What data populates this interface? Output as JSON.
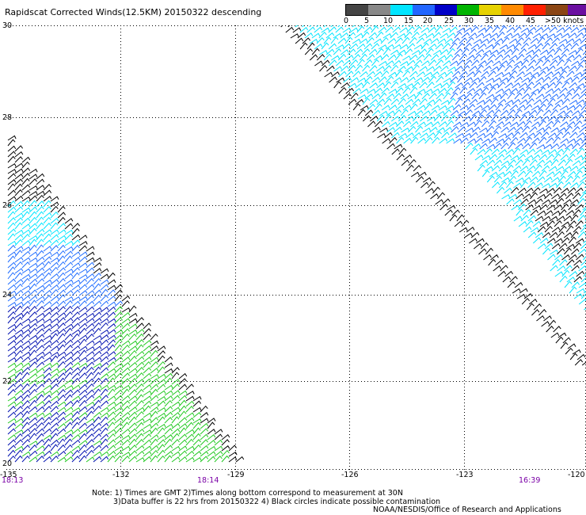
{
  "title": "Rapidscat Corrected Winds(12.5KM) 20150322 descending",
  "legend": {
    "labels": [
      "0",
      "5",
      "10",
      "15",
      "20",
      "25",
      "30",
      "35",
      "40",
      "45",
      ">50 knots"
    ],
    "colors": [
      "#555555",
      "#aaaaaa",
      "#00e5ff",
      "#2266ff",
      "#0000c8",
      "#00b400",
      "#e6d200",
      "#ff8a00",
      "#ff2000",
      "#8b4513",
      "#e000e0"
    ]
  },
  "axes": {
    "latitudes": [
      "30",
      "28",
      "26",
      "24",
      "22",
      "20"
    ],
    "longitudes": [
      "-135",
      "-132",
      "-129",
      "-126",
      "-123",
      "-120"
    ]
  },
  "times": {
    "left": "18:13",
    "middle": "18:14",
    "right": "16:39"
  },
  "notes": {
    "line1": "Note: 1) Times are GMT 2)Times along bottom correspond to measurement at 30N",
    "line2": "3)Data buffer is 22 hrs from 20150322 4) Black circles indicate possible contamination",
    "line3": "NOAA/NESDIS/Office of Research and Applications"
  },
  "wind_colors": {
    "black": "#000000",
    "cyan": "#00e5ff",
    "blue": "#1e6cff",
    "dark_blue": "#0010b0",
    "green": "#20c820"
  }
}
